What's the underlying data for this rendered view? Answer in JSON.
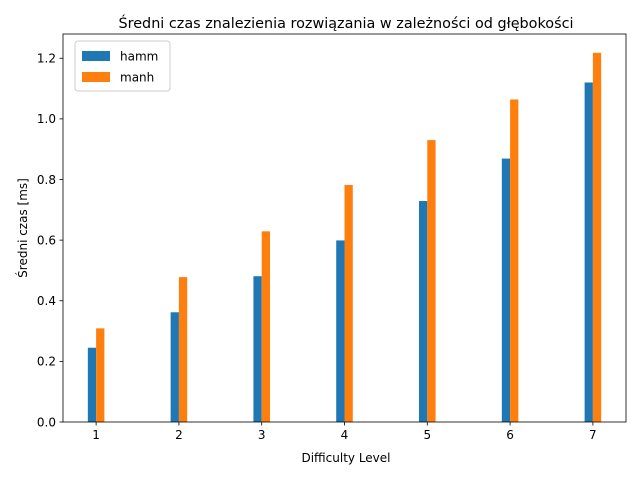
{
  "chart_data": {
    "type": "bar",
    "title": "Średni czas znalezienia rozwiązania w zależności od głębokości",
    "xlabel": "Difficulty Level",
    "ylabel": "Średni czas [ms]",
    "categories": [
      "1",
      "2",
      "3",
      "4",
      "5",
      "6",
      "7"
    ],
    "series": [
      {
        "name": "hamm",
        "color": "#1f77b4",
        "values": [
          0.245,
          0.362,
          0.481,
          0.599,
          0.729,
          0.869,
          1.12
        ]
      },
      {
        "name": "manh",
        "color": "#ff7f0e",
        "values": [
          0.309,
          0.478,
          0.629,
          0.782,
          0.93,
          1.064,
          1.218
        ]
      }
    ],
    "yticks": [
      "0.0",
      "0.2",
      "0.4",
      "0.6",
      "0.8",
      "1.0",
      "1.2"
    ],
    "ylim": [
      0,
      1.28
    ],
    "legend_position": "top-left",
    "grid": false
  }
}
